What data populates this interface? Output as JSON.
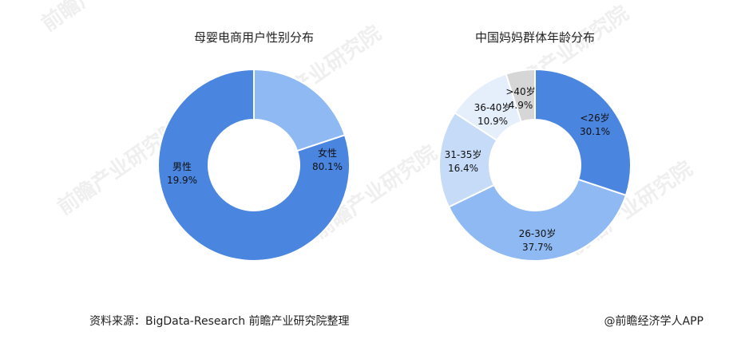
{
  "source_note": "资料来源：BigData-Research 前瞻产业研究院整理",
  "credit": "@前瞻经济学人APP",
  "watermark_text": "前瞻产业研究院",
  "chart_data": [
    {
      "type": "pie",
      "donut": true,
      "title": "母婴电商用户性别分布",
      "slices": [
        {
          "name": "女性",
          "value": 80.1,
          "label": "80.1%",
          "color": "#4a85e0"
        },
        {
          "name": "男性",
          "value": 19.9,
          "label": "19.9%",
          "color": "#8fb9f2"
        }
      ],
      "start": "counter-clockwise from top, largest slice first"
    },
    {
      "type": "pie",
      "donut": true,
      "title": "中国妈妈群体年龄分布",
      "slices": [
        {
          "name": "<26岁",
          "value": 30.1,
          "label": "30.1%",
          "color": "#4a85e0"
        },
        {
          "name": "26-30岁",
          "value": 37.7,
          "label": "37.7%",
          "color": "#8fb9f2"
        },
        {
          "name": "31-35岁",
          "value": 16.4,
          "label": "16.4%",
          "color": "#c6dbf8"
        },
        {
          "name": "36-40岁",
          "value": 10.9,
          "label": "10.9%",
          "color": "#e5eefb"
        },
        {
          "name": ">40岁",
          "value": 4.9,
          "label": "4.9%",
          "color": "#d6d6d6"
        }
      ],
      "start": "clockwise from top"
    }
  ]
}
